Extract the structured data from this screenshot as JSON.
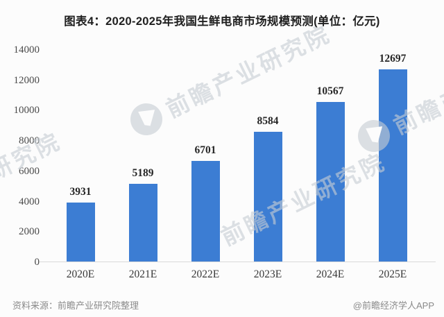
{
  "title": "图表4：2020-2025年我国生鲜电商市场规模预测(单位：亿元)",
  "chart_data": {
    "type": "bar",
    "title": "图表4：2020-2025年我国生鲜电商市场规模预测(单位：亿元)",
    "unit_label": "亿元",
    "categories": [
      "2020E",
      "2021E",
      "2022E",
      "2023E",
      "2024E",
      "2025E"
    ],
    "values": [
      3931,
      5189,
      6701,
      8584,
      10567,
      12697
    ],
    "ylim": [
      0,
      14000
    ],
    "yticks": [
      0,
      2000,
      4000,
      6000,
      8000,
      10000,
      12000,
      14000
    ],
    "grid": false,
    "legend": "none",
    "bar_color": "#3C7DD3"
  },
  "footer": {
    "source": "资料来源：前瞻产业研究院整理",
    "credit": "@前瞻经济学人APP"
  },
  "watermark": {
    "text": "前瞻产业研究院",
    "logo": "qianzhan-circle-logo"
  }
}
